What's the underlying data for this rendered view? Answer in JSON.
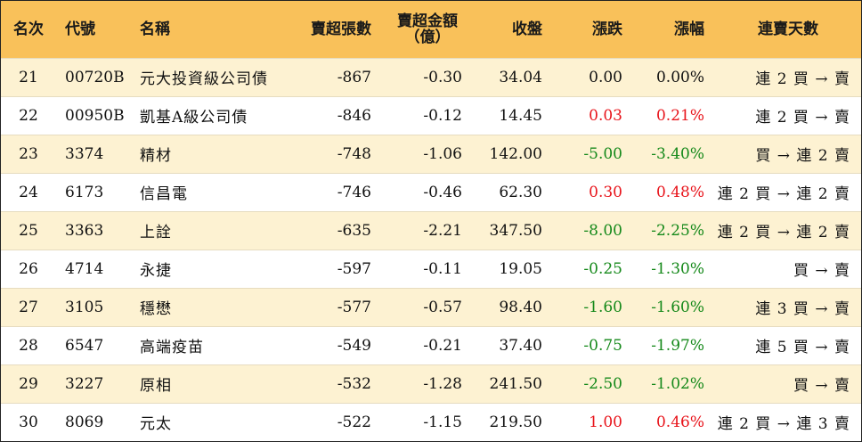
{
  "colors": {
    "header_bg": "#f9c15a",
    "odd_row_bg": "#fdf2d2",
    "even_row_bg": "#ffffff",
    "up": "#e8141b",
    "down": "#15891a"
  },
  "headers": {
    "rank": "名次",
    "code": "代號",
    "name": "名稱",
    "sell_lots": "賣超張數",
    "sell_amount_line1": "賣超金額",
    "sell_amount_line2": "（億）",
    "close": "收盤",
    "change": "漲跌",
    "change_pct": "漲幅",
    "streak": "連賣天數"
  },
  "rows": [
    {
      "rank": "21",
      "code": "00720B",
      "name": "元大投資級公司債",
      "sell_lots": "-867",
      "sell_amount": "-0.30",
      "close": "34.04",
      "change": "0.00",
      "change_pct": "0.00%",
      "trend": "flat",
      "streak": "連 2 買 → 賣"
    },
    {
      "rank": "22",
      "code": "00950B",
      "name": "凱基A級公司債",
      "sell_lots": "-846",
      "sell_amount": "-0.12",
      "close": "14.45",
      "change": "0.03",
      "change_pct": "0.21%",
      "trend": "up",
      "streak": "連 2 買 → 賣"
    },
    {
      "rank": "23",
      "code": "3374",
      "name": "精材",
      "sell_lots": "-748",
      "sell_amount": "-1.06",
      "close": "142.00",
      "change": "-5.00",
      "change_pct": "-3.40%",
      "trend": "down",
      "streak": "買 → 連 2 賣"
    },
    {
      "rank": "24",
      "code": "6173",
      "name": "信昌電",
      "sell_lots": "-746",
      "sell_amount": "-0.46",
      "close": "62.30",
      "change": "0.30",
      "change_pct": "0.48%",
      "trend": "up",
      "streak": "連 2 買 → 連 2 賣"
    },
    {
      "rank": "25",
      "code": "3363",
      "name": "上詮",
      "sell_lots": "-635",
      "sell_amount": "-2.21",
      "close": "347.50",
      "change": "-8.00",
      "change_pct": "-2.25%",
      "trend": "down",
      "streak": "連 2 買 → 連 2 賣"
    },
    {
      "rank": "26",
      "code": "4714",
      "name": "永捷",
      "sell_lots": "-597",
      "sell_amount": "-0.11",
      "close": "19.05",
      "change": "-0.25",
      "change_pct": "-1.30%",
      "trend": "down",
      "streak": "買 → 賣"
    },
    {
      "rank": "27",
      "code": "3105",
      "name": "穩懋",
      "sell_lots": "-577",
      "sell_amount": "-0.57",
      "close": "98.40",
      "change": "-1.60",
      "change_pct": "-1.60%",
      "trend": "down",
      "streak": "連 3 買 → 賣"
    },
    {
      "rank": "28",
      "code": "6547",
      "name": "高端疫苗",
      "sell_lots": "-549",
      "sell_amount": "-0.21",
      "close": "37.40",
      "change": "-0.75",
      "change_pct": "-1.97%",
      "trend": "down",
      "streak": "連 5 買 → 賣"
    },
    {
      "rank": "29",
      "code": "3227",
      "name": "原相",
      "sell_lots": "-532",
      "sell_amount": "-1.28",
      "close": "241.50",
      "change": "-2.50",
      "change_pct": "-1.02%",
      "trend": "down",
      "streak": "買 → 賣"
    },
    {
      "rank": "30",
      "code": "8069",
      "name": "元太",
      "sell_lots": "-522",
      "sell_amount": "-1.15",
      "close": "219.50",
      "change": "1.00",
      "change_pct": "0.46%",
      "trend": "up",
      "streak": "連 2 買 → 連 3 賣"
    }
  ]
}
